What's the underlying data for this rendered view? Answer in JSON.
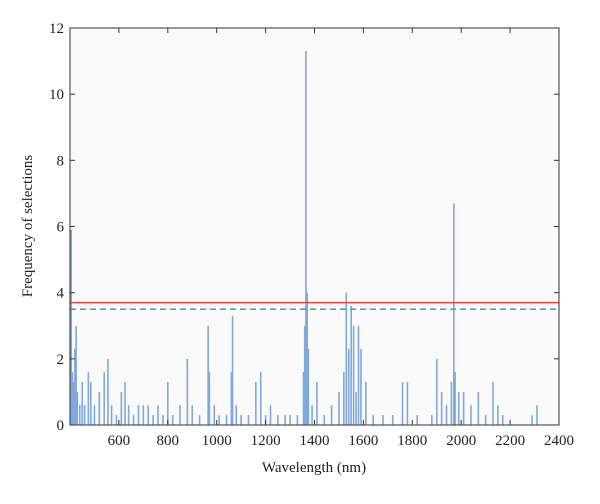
{
  "chart_data": {
    "type": "bar",
    "xlabel": "Wavelength (nm)",
    "ylabel": "Frequency of selections",
    "x": [
      405,
      410,
      415,
      420,
      425,
      430,
      440,
      450,
      460,
      475,
      485,
      500,
      520,
      540,
      555,
      570,
      590,
      610,
      625,
      640,
      660,
      680,
      700,
      720,
      740,
      760,
      780,
      800,
      820,
      850,
      880,
      900,
      930,
      965,
      970,
      990,
      1010,
      1040,
      1060,
      1065,
      1080,
      1100,
      1130,
      1160,
      1180,
      1200,
      1220,
      1250,
      1280,
      1300,
      1330,
      1355,
      1360,
      1365,
      1370,
      1375,
      1390,
      1410,
      1440,
      1470,
      1500,
      1520,
      1530,
      1540,
      1550,
      1560,
      1570,
      1580,
      1590,
      1610,
      1640,
      1680,
      1720,
      1760,
      1780,
      1820,
      1880,
      1900,
      1920,
      1940,
      1960,
      1970,
      1975,
      1990,
      2010,
      2040,
      2070,
      2100,
      2130,
      2150,
      2170,
      2290,
      2310
    ],
    "values": [
      5.9,
      1.6,
      1.3,
      2.3,
      3.0,
      1.0,
      0.6,
      1.3,
      0.6,
      1.6,
      1.3,
      0.6,
      1.0,
      1.6,
      2.0,
      0.6,
      0.3,
      1.0,
      1.3,
      0.6,
      0.3,
      0.6,
      0.6,
      0.6,
      0.3,
      0.6,
      0.3,
      1.3,
      0.3,
      0.6,
      2.0,
      0.6,
      0.3,
      3.0,
      1.6,
      0.6,
      0.3,
      0.3,
      1.6,
      3.3,
      0.6,
      0.3,
      0.3,
      1.3,
      1.6,
      0.3,
      0.6,
      0.3,
      0.3,
      0.3,
      0.3,
      1.6,
      3.0,
      11.3,
      4.0,
      2.3,
      0.6,
      1.3,
      0.3,
      0.6,
      1.0,
      1.6,
      4.0,
      2.3,
      3.6,
      3.0,
      1.0,
      3.0,
      2.3,
      1.3,
      0.3,
      0.3,
      0.3,
      1.3,
      1.3,
      0.3,
      0.3,
      2.0,
      1.0,
      0.6,
      1.3,
      6.7,
      1.6,
      1.0,
      1.0,
      0.6,
      1.0,
      0.3,
      1.3,
      0.6,
      0.3,
      0.3,
      0.6
    ],
    "color": "#7fa8dc",
    "reference_lines": [
      {
        "value": 3.7,
        "color": "#e0453c",
        "style": "solid"
      },
      {
        "value": 3.5,
        "color": "#2fa7b8",
        "style": "dashed"
      }
    ],
    "xlim": [
      400,
      2400
    ],
    "xticks": [
      600,
      800,
      1000,
      1200,
      1400,
      1600,
      1800,
      2000,
      2200,
      2400
    ],
    "ylim": [
      0,
      12
    ],
    "yticks": [
      0,
      2,
      4,
      6,
      8,
      10,
      12
    ]
  }
}
